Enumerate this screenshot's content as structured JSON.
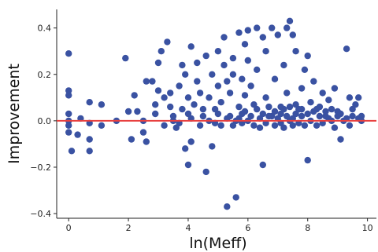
{
  "chart_data": {
    "type": "scatter",
    "xlabel": "ln(Meff)",
    "ylabel": "Improvement",
    "xlim": [
      -0.4,
      10.3
    ],
    "ylim": [
      -0.42,
      0.48
    ],
    "x_ticks": [
      0,
      2,
      4,
      6,
      8,
      10
    ],
    "y_ticks": [
      -0.4,
      -0.2,
      0.0,
      0.2,
      0.4
    ],
    "x_tick_labels": [
      "0",
      "2",
      "4",
      "6",
      "8",
      "10"
    ],
    "y_tick_labels": [
      "−0.4",
      "−0.2",
      "0.0",
      "0.2",
      "0.4"
    ],
    "grid": false,
    "reference_line": {
      "y": 0.0,
      "color": "#e8403f"
    },
    "marker_color": "#3a52a2",
    "points": [
      [
        0.0,
        0.29
      ],
      [
        0.0,
        0.13
      ],
      [
        0.0,
        0.11
      ],
      [
        0.0,
        0.03
      ],
      [
        0.0,
        0.0
      ],
      [
        0.0,
        -0.02
      ],
      [
        0.0,
        -0.05
      ],
      [
        0.1,
        -0.13
      ],
      [
        0.3,
        -0.06
      ],
      [
        0.4,
        0.01
      ],
      [
        0.7,
        0.08
      ],
      [
        0.7,
        -0.01
      ],
      [
        0.7,
        -0.08
      ],
      [
        0.7,
        -0.13
      ],
      [
        1.1,
        0.07
      ],
      [
        1.1,
        -0.02
      ],
      [
        1.6,
        0.0
      ],
      [
        1.9,
        0.27
      ],
      [
        2.0,
        0.04
      ],
      [
        2.1,
        -0.08
      ],
      [
        2.2,
        0.11
      ],
      [
        2.3,
        0.04
      ],
      [
        2.5,
        0.0
      ],
      [
        2.5,
        -0.05
      ],
      [
        2.6,
        -0.09
      ],
      [
        2.6,
        0.17
      ],
      [
        2.8,
        0.17
      ],
      [
        2.9,
        0.07
      ],
      [
        2.9,
        0.03
      ],
      [
        3.0,
        0.25
      ],
      [
        3.0,
        0.13
      ],
      [
        3.1,
        0.3
      ],
      [
        3.2,
        0.1
      ],
      [
        3.2,
        -0.02
      ],
      [
        3.3,
        0.34
      ],
      [
        3.4,
        0.12
      ],
      [
        3.4,
        0.06
      ],
      [
        3.5,
        0.0
      ],
      [
        3.6,
        -0.03
      ],
      [
        3.7,
        0.15
      ],
      [
        3.8,
        0.24
      ],
      [
        3.8,
        0.05
      ],
      [
        3.9,
        -0.12
      ],
      [
        3.9,
        0.2
      ],
      [
        4.0,
        -0.19
      ],
      [
        4.0,
        0.1
      ],
      [
        4.0,
        0.03
      ],
      [
        4.1,
        0.32
      ],
      [
        4.1,
        -0.09
      ],
      [
        4.2,
        0.07
      ],
      [
        4.3,
        0.25
      ],
      [
        4.3,
        0.17
      ],
      [
        4.4,
        0.12
      ],
      [
        4.4,
        -0.02
      ],
      [
        4.5,
        0.05
      ],
      [
        4.6,
        0.28
      ],
      [
        4.6,
        -0.22
      ],
      [
        4.7,
        0.1
      ],
      [
        4.7,
        0.0
      ],
      [
        4.8,
        -0.11
      ],
      [
        4.8,
        0.2
      ],
      [
        4.9,
        0.05
      ],
      [
        5.0,
        0.3
      ],
      [
        5.0,
        0.15
      ],
      [
        5.1,
        0.08
      ],
      [
        5.1,
        -0.02
      ],
      [
        5.2,
        0.36
      ],
      [
        5.2,
        0.24
      ],
      [
        5.3,
        0.17
      ],
      [
        5.3,
        -0.37
      ],
      [
        5.4,
        0.02
      ],
      [
        5.4,
        0.12
      ],
      [
        5.5,
        0.27
      ],
      [
        5.5,
        0.2
      ],
      [
        5.6,
        0.0
      ],
      [
        5.6,
        -0.33
      ],
      [
        5.7,
        0.38
      ],
      [
        5.7,
        0.06
      ],
      [
        5.8,
        0.18
      ],
      [
        5.8,
        0.03
      ],
      [
        5.9,
        0.33
      ],
      [
        5.9,
        0.11
      ],
      [
        6.0,
        0.39
      ],
      [
        6.0,
        0.26
      ],
      [
        6.0,
        0.0
      ],
      [
        6.1,
        0.15
      ],
      [
        6.2,
        0.07
      ],
      [
        6.3,
        0.4
      ],
      [
        6.3,
        0.22
      ],
      [
        6.4,
        -0.03
      ],
      [
        6.5,
        0.36
      ],
      [
        6.5,
        -0.19
      ],
      [
        6.6,
        0.3
      ],
      [
        6.6,
        0.1
      ],
      [
        6.7,
        0.02
      ],
      [
        6.8,
        0.4
      ],
      [
        6.9,
        0.18
      ],
      [
        7.0,
        0.37
      ],
      [
        7.1,
        0.06
      ],
      [
        7.2,
        0.24
      ],
      [
        7.3,
        0.4
      ],
      [
        7.3,
        0.12
      ],
      [
        7.4,
        0.43
      ],
      [
        7.4,
        0.0
      ],
      [
        7.5,
        0.37
      ],
      [
        7.6,
        0.3
      ],
      [
        7.7,
        0.05
      ],
      [
        7.8,
        0.14
      ],
      [
        7.9,
        0.22
      ],
      [
        8.0,
        -0.17
      ],
      [
        8.0,
        0.28
      ],
      [
        8.1,
        0.08
      ],
      [
        8.2,
        0.17
      ],
      [
        8.3,
        0.05
      ],
      [
        8.5,
        0.12
      ],
      [
        8.6,
        0.02
      ],
      [
        8.7,
        0.09
      ],
      [
        8.8,
        0.0
      ],
      [
        8.9,
        0.14
      ],
      [
        9.0,
        0.04
      ],
      [
        9.1,
        -0.08
      ],
      [
        9.2,
        0.0
      ],
      [
        9.3,
        0.31
      ],
      [
        9.4,
        0.1
      ],
      [
        9.5,
        0.02
      ],
      [
        9.6,
        0.07
      ],
      [
        9.7,
        0.1
      ],
      [
        9.8,
        0.0
      ],
      [
        9.8,
        0.02
      ],
      [
        3.5,
        0.02
      ],
      [
        3.7,
        -0.01
      ],
      [
        4.1,
        0.01
      ],
      [
        4.5,
        0.02
      ],
      [
        4.9,
        -0.01
      ],
      [
        5.0,
        0.03
      ],
      [
        5.3,
        0.01
      ],
      [
        5.5,
        -0.02
      ],
      [
        5.7,
        0.01
      ],
      [
        5.8,
        -0.01
      ],
      [
        5.9,
        0.04
      ],
      [
        6.1,
        0.02
      ],
      [
        6.2,
        -0.02
      ],
      [
        6.3,
        0.05
      ],
      [
        6.4,
        0.01
      ],
      [
        6.5,
        0.03
      ],
      [
        6.6,
        -0.01
      ],
      [
        6.7,
        0.06
      ],
      [
        6.8,
        0.02
      ],
      [
        6.9,
        -0.02
      ],
      [
        6.9,
        0.04
      ],
      [
        7.0,
        0.01
      ],
      [
        7.1,
        -0.01
      ],
      [
        7.1,
        0.03
      ],
      [
        7.2,
        0.05
      ],
      [
        7.2,
        -0.03
      ],
      [
        7.3,
        0.02
      ],
      [
        7.4,
        0.06
      ],
      [
        7.5,
        0.01
      ],
      [
        7.5,
        -0.02
      ],
      [
        7.6,
        0.03
      ],
      [
        7.6,
        0.07
      ],
      [
        7.7,
        -0.01
      ],
      [
        7.8,
        0.02
      ],
      [
        7.8,
        0.05
      ],
      [
        7.9,
        -0.02
      ],
      [
        8.0,
        0.03
      ],
      [
        8.1,
        0.0
      ],
      [
        8.2,
        0.04
      ],
      [
        8.3,
        -0.02
      ],
      [
        8.4,
        0.02
      ],
      [
        8.4,
        0.06
      ],
      [
        8.5,
        -0.01
      ],
      [
        8.6,
        0.04
      ],
      [
        8.7,
        0.01
      ],
      [
        8.8,
        0.05
      ],
      [
        8.9,
        -0.03
      ],
      [
        9.0,
        0.02
      ],
      [
        9.1,
        0.03
      ],
      [
        9.3,
        0.01
      ],
      [
        9.4,
        -0.02
      ],
      [
        9.5,
        0.05
      ],
      [
        9.7,
        0.01
      ]
    ]
  }
}
